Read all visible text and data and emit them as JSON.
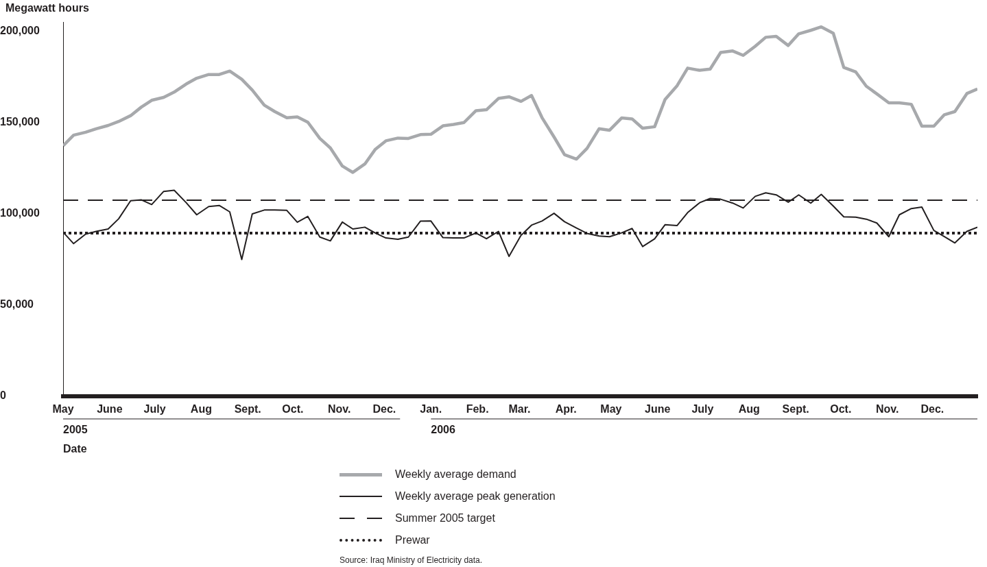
{
  "chart_data": {
    "type": "line",
    "ylabel": "Megawatt hours",
    "xlabel": "Date",
    "x": [
      "2005-05-01",
      "2005-05-08",
      "2005-05-16",
      "2005-05-23",
      "2005-05-31",
      "2005-06-07",
      "2005-06-15",
      "2005-06-22",
      "2005-06-29",
      "2005-07-07",
      "2005-07-14",
      "2005-07-22",
      "2005-07-29",
      "2005-08-06",
      "2005-08-13",
      "2005-08-20",
      "2005-08-28",
      "2005-09-04",
      "2005-09-12",
      "2005-09-19",
      "2005-09-27",
      "2005-10-04",
      "2005-10-11",
      "2005-10-19",
      "2005-10-26",
      "2005-11-03",
      "2005-11-10",
      "2005-11-18",
      "2005-11-25",
      "2005-12-02",
      "2005-12-10",
      "2005-12-17",
      "2005-12-25",
      "2006-01-01",
      "2006-01-09",
      "2006-01-16",
      "2006-01-23",
      "2006-01-31",
      "2006-02-07",
      "2006-02-15",
      "2006-02-22",
      "2006-03-02",
      "2006-03-09",
      "2006-03-16",
      "2006-03-24",
      "2006-03-31",
      "2006-04-08",
      "2006-04-15",
      "2006-04-23",
      "2006-04-30",
      "2006-05-08",
      "2006-05-15",
      "2006-05-22",
      "2006-05-30",
      "2006-06-06",
      "2006-06-14",
      "2006-06-21",
      "2006-06-29",
      "2006-07-06",
      "2006-07-13",
      "2006-07-21",
      "2006-07-28",
      "2006-08-05",
      "2006-08-12",
      "2006-08-19",
      "2006-08-27",
      "2006-09-03",
      "2006-09-11",
      "2006-09-18",
      "2006-09-26",
      "2006-10-03",
      "2006-10-11",
      "2006-10-18",
      "2006-10-25",
      "2006-11-02",
      "2006-11-09",
      "2006-11-17",
      "2006-11-24",
      "2006-12-02",
      "2006-12-09",
      "2006-12-16",
      "2006-12-24",
      "2006-12-31"
    ],
    "series": [
      {
        "name": "Weekly average demand",
        "color": "#a7a9ac",
        "values": [
          137200,
          143000,
          144600,
          146500,
          148300,
          150500,
          153700,
          158300,
          162100,
          163700,
          166600,
          171000,
          174200,
          176200,
          176200,
          178100,
          173600,
          167700,
          159400,
          155900,
          152500,
          153000,
          150100,
          141200,
          136000,
          126100,
          122600,
          127200,
          135300,
          139900,
          141400,
          141200,
          143300,
          143500,
          148100,
          148900,
          149900,
          156400,
          156900,
          163100,
          164000,
          161500,
          164700,
          152600,
          142000,
          132300,
          129900,
          135800,
          146500,
          145700,
          152400,
          151900,
          146800,
          147600,
          162600,
          170100,
          179700,
          178500,
          179200,
          188300,
          189100,
          186700,
          191700,
          196600,
          197100,
          192100,
          198500,
          200400,
          202300,
          198800,
          180100,
          177600,
          169800,
          165600,
          160700,
          160700,
          159900,
          147900,
          147900,
          154200,
          155900,
          165800,
          168300
        ]
      },
      {
        "name": "Weekly average peak generation",
        "color": "#231f20",
        "values": [
          89900,
          83600,
          88800,
          90300,
          91600,
          97200,
          107100,
          107600,
          105000,
          112200,
          112800,
          106000,
          99400,
          103900,
          104500,
          101000,
          74900,
          99900,
          102000,
          102000,
          101800,
          95300,
          98500,
          87200,
          85100,
          95400,
          91600,
          92600,
          89400,
          86700,
          86000,
          87200,
          95900,
          96000,
          86900,
          86700,
          86700,
          89400,
          86300,
          90300,
          76600,
          88100,
          93700,
          96000,
          100200,
          95600,
          92100,
          89200,
          87800,
          87400,
          89500,
          91900,
          82000,
          86200,
          94000,
          93500,
          100600,
          106000,
          108300,
          107900,
          105800,
          103100,
          109500,
          111400,
          110300,
          106300,
          110300,
          105800,
          110600,
          104200,
          98300,
          98100,
          97000,
          94900,
          87400,
          99400,
          102800,
          103600,
          90800,
          87400,
          84000,
          90300,
          92600
        ]
      }
    ],
    "ref_lines": [
      {
        "axis": "y",
        "value": 107400,
        "label": "Summer 2005 target",
        "color": "#231f20",
        "line_style": "dashed"
      },
      {
        "axis": "y",
        "value": 89400,
        "label": "Prewar",
        "color": "#231f20",
        "line_style": "dotted"
      }
    ],
    "xlim": [
      "2005-05-01",
      "2006-12-31"
    ],
    "xticks": [
      {
        "value": "2005-05-01",
        "label": "May"
      },
      {
        "value": "2005-06-01",
        "label": "June"
      },
      {
        "value": "2005-07-01",
        "label": "July"
      },
      {
        "value": "2005-08-01",
        "label": "Aug"
      },
      {
        "value": "2005-09-01",
        "label": "Sept."
      },
      {
        "value": "2005-10-01",
        "label": "Oct."
      },
      {
        "value": "2005-11-01",
        "label": "Nov."
      },
      {
        "value": "2005-12-01",
        "label": "Dec."
      },
      {
        "value": "2006-01-01",
        "label": "Jan."
      },
      {
        "value": "2006-02-01",
        "label": "Feb."
      },
      {
        "value": "2006-03-01",
        "label": "Mar."
      },
      {
        "value": "2006-04-01",
        "label": "Apr."
      },
      {
        "value": "2006-05-01",
        "label": "May"
      },
      {
        "value": "2006-06-01",
        "label": "June"
      },
      {
        "value": "2006-07-01",
        "label": "July"
      },
      {
        "value": "2006-08-01",
        "label": "Aug"
      },
      {
        "value": "2006-09-01",
        "label": "Sept."
      },
      {
        "value": "2006-10-01",
        "label": "Oct."
      },
      {
        "value": "2006-11-01",
        "label": "Nov."
      },
      {
        "value": "2006-12-01",
        "label": "Dec."
      }
    ],
    "ylim": [
      0,
      205000
    ],
    "yticks": [
      {
        "value": 0,
        "label": "0"
      },
      {
        "value": 50000,
        "label": "50,000"
      },
      {
        "value": 100000,
        "label": "100,000"
      },
      {
        "value": 150000,
        "label": "150,000"
      },
      {
        "value": 200000,
        "label": "200,000"
      }
    ],
    "grid": false,
    "legend": "bottom",
    "annotations": [
      "2005",
      "2006",
      "Source: Iraq Ministry of Electricity data."
    ]
  }
}
